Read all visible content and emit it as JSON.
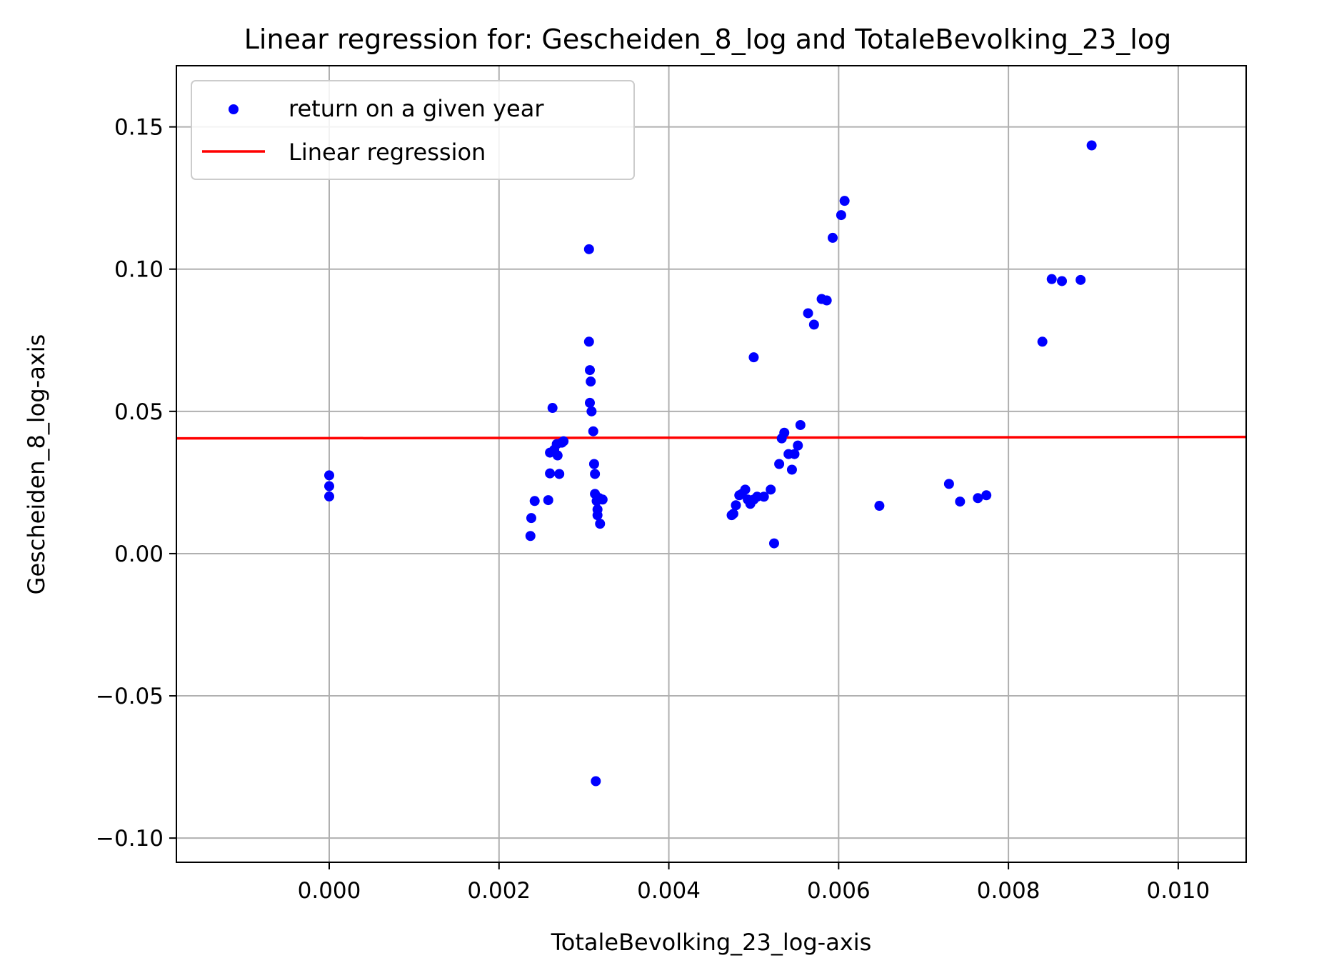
{
  "chart_data": {
    "type": "scatter",
    "title": "Linear regression for: Gescheiden_8_log and TotaleBevolking_23_log",
    "xlabel": "TotaleBevolking_23_log-axis",
    "ylabel": "Gescheiden_8_log-axis",
    "xlim": [
      -0.0018,
      0.0108
    ],
    "ylim": [
      -0.1085,
      0.1715
    ],
    "xticks": [
      0.0,
      0.002,
      0.004,
      0.006,
      0.008,
      0.01
    ],
    "xtick_labels": [
      "0.000",
      "0.002",
      "0.004",
      "0.006",
      "0.008",
      "0.010"
    ],
    "yticks": [
      -0.1,
      -0.05,
      0.0,
      0.05,
      0.1,
      0.15
    ],
    "ytick_labels": [
      "−0.10",
      "−0.05",
      "0.00",
      "0.05",
      "0.10",
      "0.15"
    ],
    "grid": true,
    "legend_position": "top-left",
    "series": [
      {
        "name": "return on a given year",
        "kind": "scatter",
        "color": "#0000ff",
        "points": [
          [
            0.0,
            0.0275
          ],
          [
            0.0,
            0.0237
          ],
          [
            0.0,
            0.0201
          ],
          [
            0.00237,
            0.0062
          ],
          [
            0.00238,
            0.0125
          ],
          [
            0.00242,
            0.0185
          ],
          [
            0.00258,
            0.0188
          ],
          [
            0.0026,
            0.0355
          ],
          [
            0.0026,
            0.0282
          ],
          [
            0.00263,
            0.0512
          ],
          [
            0.00265,
            0.0365
          ],
          [
            0.00268,
            0.0385
          ],
          [
            0.00269,
            0.0345
          ],
          [
            0.00271,
            0.028
          ],
          [
            0.00274,
            0.039
          ],
          [
            0.00276,
            0.0395
          ],
          [
            0.00306,
            0.107
          ],
          [
            0.00306,
            0.0745
          ],
          [
            0.00307,
            0.0645
          ],
          [
            0.00307,
            0.053
          ],
          [
            0.00308,
            0.0605
          ],
          [
            0.00309,
            0.05
          ],
          [
            0.00311,
            0.043
          ],
          [
            0.00312,
            0.0315
          ],
          [
            0.00313,
            0.028
          ],
          [
            0.00313,
            0.021
          ],
          [
            0.00315,
            0.0185
          ],
          [
            0.00316,
            0.0135
          ],
          [
            0.00316,
            0.0155
          ],
          [
            0.00318,
            0.0195
          ],
          [
            0.00319,
            0.0105
          ],
          [
            0.00322,
            0.019
          ],
          [
            0.00314,
            -0.08
          ],
          [
            0.00474,
            0.0135
          ],
          [
            0.00476,
            0.014
          ],
          [
            0.00479,
            0.017
          ],
          [
            0.00483,
            0.0205
          ],
          [
            0.00486,
            0.021
          ],
          [
            0.0049,
            0.0225
          ],
          [
            0.00493,
            0.019
          ],
          [
            0.00496,
            0.0175
          ],
          [
            0.005,
            0.019
          ],
          [
            0.00504,
            0.02
          ],
          [
            0.00512,
            0.02
          ],
          [
            0.0052,
            0.0225
          ],
          [
            0.00524,
            0.0036
          ],
          [
            0.0053,
            0.0315
          ],
          [
            0.00533,
            0.0405
          ],
          [
            0.00536,
            0.0425
          ],
          [
            0.00541,
            0.035
          ],
          [
            0.00545,
            0.0295
          ],
          [
            0.00548,
            0.035
          ],
          [
            0.00552,
            0.038
          ],
          [
            0.00555,
            0.0452
          ],
          [
            0.005,
            0.069
          ],
          [
            0.00564,
            0.0845
          ],
          [
            0.00571,
            0.0805
          ],
          [
            0.0058,
            0.0895
          ],
          [
            0.00586,
            0.089
          ],
          [
            0.00593,
            0.111
          ],
          [
            0.00603,
            0.119
          ],
          [
            0.00607,
            0.124
          ],
          [
            0.00648,
            0.0168
          ],
          [
            0.0073,
            0.0245
          ],
          [
            0.00743,
            0.0183
          ],
          [
            0.00764,
            0.0195
          ],
          [
            0.00774,
            0.0205
          ],
          [
            0.0084,
            0.0745
          ],
          [
            0.00851,
            0.0965
          ],
          [
            0.00863,
            0.0958
          ],
          [
            0.00885,
            0.0962
          ],
          [
            0.00898,
            0.1435
          ]
        ]
      },
      {
        "name": "Linear regression",
        "kind": "line",
        "color": "#ff0000",
        "points": [
          [
            -0.0018,
            0.0405
          ],
          [
            0.0108,
            0.041
          ]
        ]
      }
    ]
  }
}
